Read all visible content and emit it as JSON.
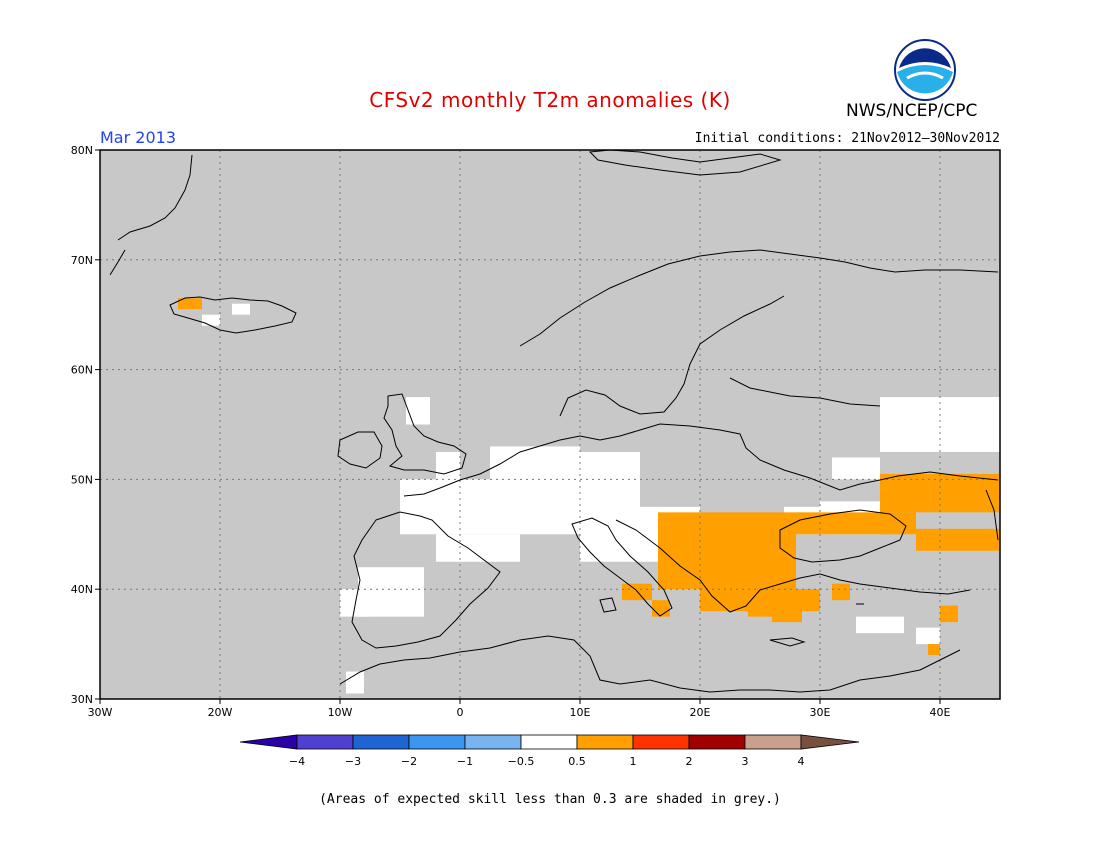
{
  "header": {
    "title": "CFSv2 monthly T2m anomalies (K)",
    "agency": "NWS/NCEP/CPC",
    "period": "Mar 2013",
    "initial_conditions": "Initial conditions: 21Nov2012–30Nov2012",
    "logo_text": "NOAA"
  },
  "map": {
    "lat_labels": [
      "80N",
      "70N",
      "60N",
      "50N",
      "40N",
      "30N"
    ],
    "lon_labels": [
      "30W",
      "20W",
      "10W",
      "0",
      "10E",
      "20E",
      "30E",
      "40E"
    ],
    "background_color": "#c8c8c8",
    "neutral_color": "#ffffff",
    "warm_color": "#ffa000"
  },
  "legend": {
    "labels": [
      "−4",
      "−3",
      "−2",
      "−1",
      "−0.5",
      "0.5",
      "1",
      "2",
      "3",
      "4"
    ],
    "colors": [
      "#2a00a8",
      "#5040d0",
      "#1e64d2",
      "#3c96f0",
      "#78b4f0",
      "#ffffff",
      "#ffa000",
      "#ff3200",
      "#a00000",
      "#c8a08c",
      "#785040"
    ]
  },
  "footnote": "(Areas of expected skill less than 0.3 are shaded in grey.)"
}
